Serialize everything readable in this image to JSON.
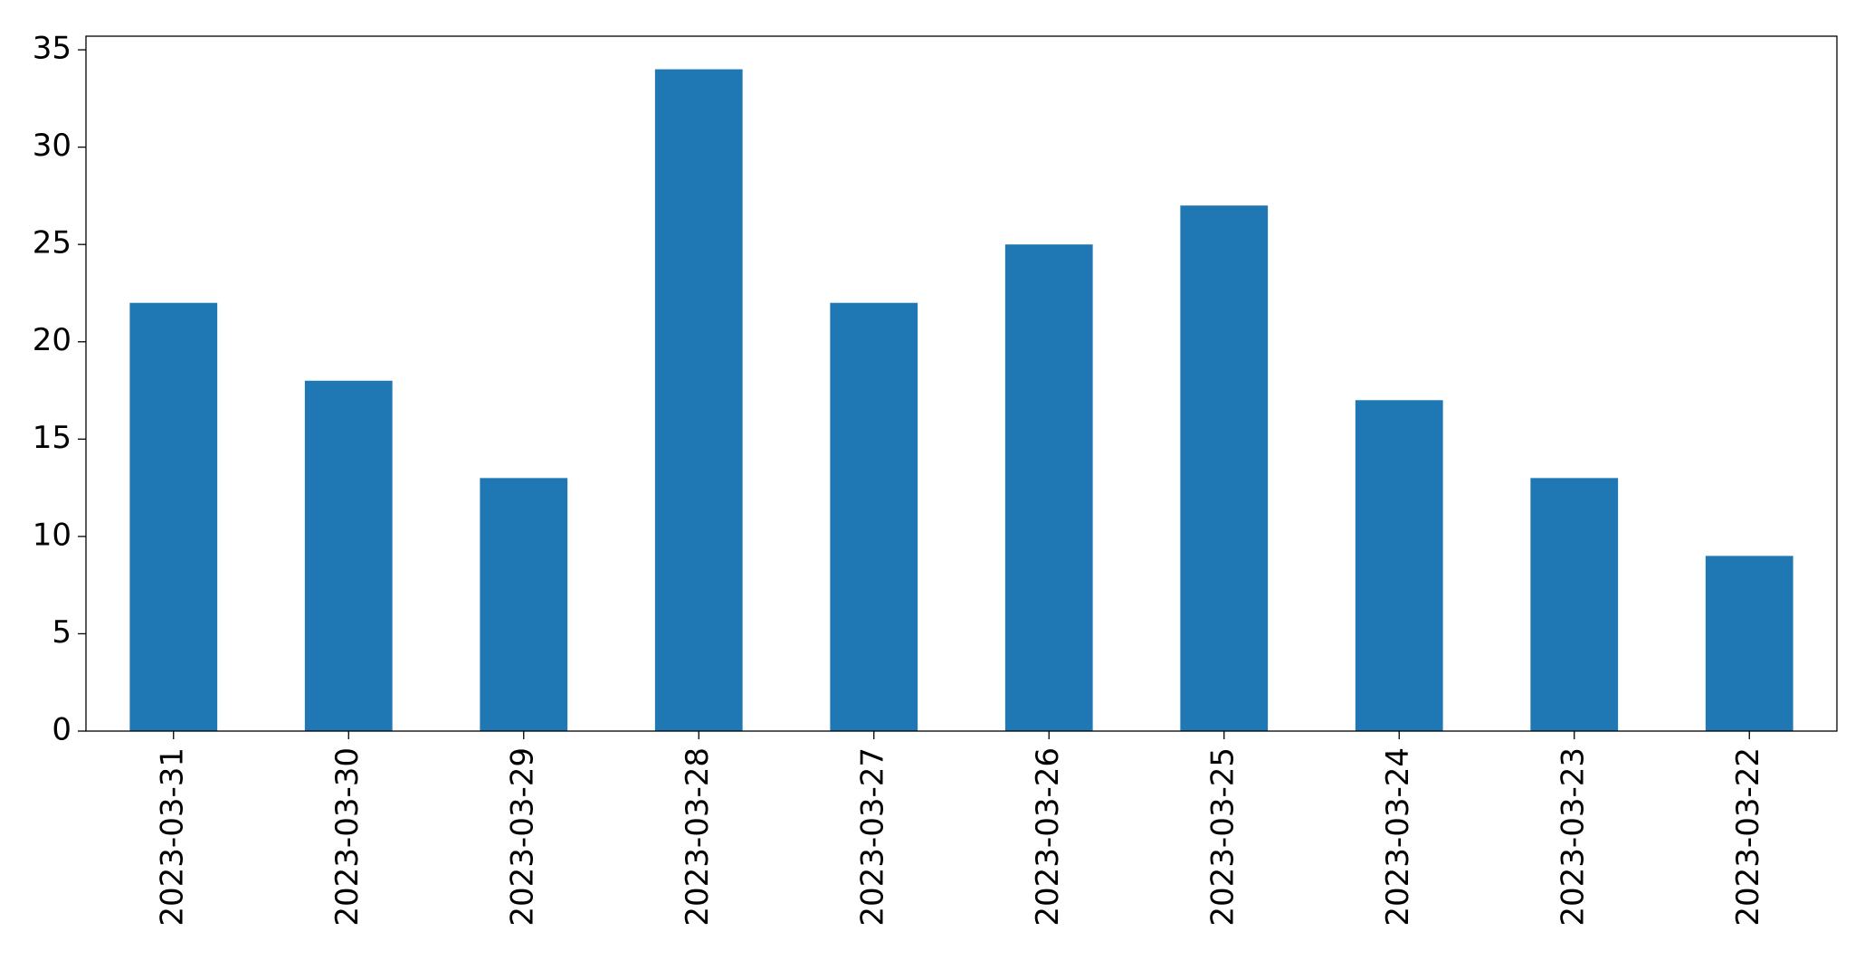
{
  "chart_data": {
    "type": "bar",
    "categories": [
      "2023-03-31",
      "2023-03-30",
      "2023-03-29",
      "2023-03-28",
      "2023-03-27",
      "2023-03-26",
      "2023-03-25",
      "2023-03-24",
      "2023-03-23",
      "2023-03-22"
    ],
    "values": [
      22,
      18,
      13,
      34,
      22,
      25,
      27,
      17,
      13,
      9
    ],
    "color": "#1f77b4",
    "ylim": [
      0,
      35.7
    ],
    "yticks": [
      0,
      5,
      10,
      15,
      20,
      25,
      30,
      35
    ],
    "grid": false
  }
}
